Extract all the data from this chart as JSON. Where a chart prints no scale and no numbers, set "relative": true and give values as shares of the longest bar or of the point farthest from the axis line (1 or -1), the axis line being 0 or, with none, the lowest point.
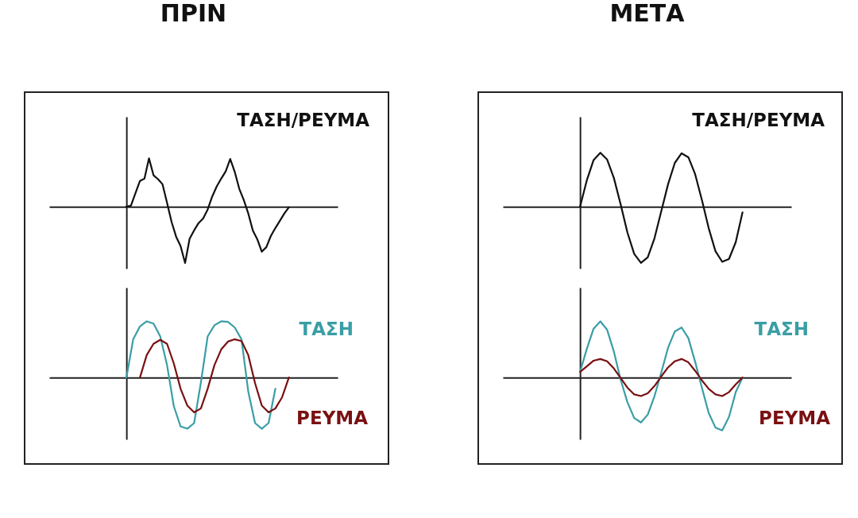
{
  "chart_data": [
    {
      "type": "line",
      "title": "ΠΡΙΝ",
      "relative": true,
      "tick_labels": false,
      "legend": false,
      "categories": [
        null,
        null,
        null,
        null,
        null,
        null,
        null,
        null,
        null,
        null,
        null,
        null,
        null,
        null,
        null,
        null,
        null,
        null,
        null,
        null,
        null,
        null,
        null,
        null,
        null,
        null,
        null,
        null,
        null,
        null,
        null,
        null,
        null,
        null,
        null,
        null,
        null
      ],
      "series": [
        {
          "name": "ΤΑΣΗ/ΡΕΥΜΑ",
          "color": "#111111",
          "values": [
            0,
            0.02,
            0.24,
            0.46,
            0.5,
            0.86,
            0.56,
            0.49,
            0.4,
            0.07,
            -0.27,
            -0.53,
            -0.7,
            -1,
            -0.57,
            -0.42,
            -0.29,
            -0.21,
            -0.05,
            0.18,
            0.36,
            0.5,
            0.63,
            0.85,
            0.62,
            0.32,
            0.12,
            -0.12,
            -0.42,
            -0.58,
            -0.8,
            -0.72,
            -0.52,
            -0.38,
            -0.25,
            -0.12,
            -0.01
          ]
        }
      ]
    },
    {
      "type": "line",
      "relative": true,
      "tick_labels": false,
      "legend": false,
      "categories": [
        null,
        null,
        null,
        null,
        null,
        null,
        null,
        null,
        null,
        null,
        null,
        null,
        null,
        null,
        null,
        null,
        null,
        null,
        null,
        null,
        null,
        null,
        null,
        null,
        null
      ],
      "series": [
        {
          "name": "ΤΑΣΗ",
          "color": "#3a9ea5",
          "values": [
            0,
            0.68,
            0.91,
            1,
            0.96,
            0.73,
            0.22,
            -0.51,
            -0.87,
            -0.91,
            -0.81,
            -0.09,
            0.73,
            0.93,
            1,
            0.99,
            0.89,
            0.68,
            -0.25,
            -0.81,
            -0.91,
            -0.81,
            -0.2,
            null,
            null
          ]
        },
        {
          "name": "ΡΕΥΜΑ",
          "color": "#7a1012",
          "values": [
            null,
            null,
            0,
            0.4,
            0.6,
            0.67,
            0.6,
            0.25,
            -0.2,
            -0.5,
            -0.62,
            -0.55,
            -0.2,
            0.22,
            0.5,
            0.64,
            0.68,
            0.65,
            0.4,
            -0.1,
            -0.5,
            -0.62,
            -0.55,
            -0.35,
            0
          ]
        }
      ]
    },
    {
      "type": "line",
      "title": "ΜΕΤΑ",
      "relative": true,
      "tick_labels": false,
      "legend": false,
      "categories": [
        null,
        null,
        null,
        null,
        null,
        null,
        null,
        null,
        null,
        null,
        null,
        null,
        null,
        null,
        null,
        null,
        null,
        null,
        null,
        null,
        null,
        null,
        null,
        null,
        null
      ],
      "series": [
        {
          "name": "ΤΑΣΗ/ΡΕΥΜΑ",
          "color": "#111111",
          "values": [
            0,
            0.47,
            0.83,
            0.96,
            0.84,
            0.51,
            0.04,
            -0.46,
            -0.84,
            -1,
            -0.9,
            -0.56,
            -0.08,
            0.4,
            0.78,
            0.95,
            0.88,
            0.58,
            0.12,
            -0.38,
            -0.79,
            -0.98,
            -0.93,
            -0.63,
            -0.1
          ]
        }
      ]
    },
    {
      "type": "line",
      "relative": true,
      "tick_labels": false,
      "legend": false,
      "categories": [
        null,
        null,
        null,
        null,
        null,
        null,
        null,
        null,
        null,
        null,
        null,
        null,
        null,
        null,
        null,
        null,
        null,
        null,
        null,
        null,
        null,
        null,
        null,
        null,
        null
      ],
      "series": [
        {
          "name": "ΤΑΣΗ",
          "color": "#3a9ea5",
          "values": [
            0.1,
            0.51,
            0.87,
            1,
            0.85,
            0.46,
            -0.04,
            -0.44,
            -0.72,
            -0.8,
            -0.66,
            -0.33,
            0.09,
            0.53,
            0.82,
            0.89,
            0.7,
            0.28,
            -0.18,
            -0.63,
            -0.89,
            -0.94,
            -0.7,
            -0.26,
            0
          ]
        },
        {
          "name": "ΡΕΥΜΑ",
          "color": "#7a1012",
          "values": [
            0.1,
            0.2,
            0.3,
            0.33,
            0.29,
            0.16,
            -0.01,
            -0.18,
            -0.3,
            -0.33,
            -0.28,
            -0.15,
            0.02,
            0.18,
            0.29,
            0.33,
            0.27,
            0.12,
            -0.05,
            -0.2,
            -0.3,
            -0.33,
            -0.26,
            -0.12,
            0
          ]
        }
      ]
    }
  ]
}
